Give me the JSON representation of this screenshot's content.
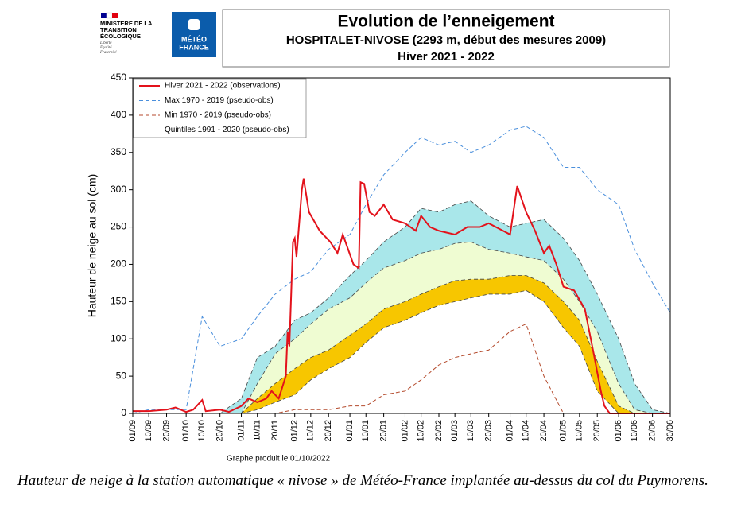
{
  "logos": {
    "ministry": "MINISTÈRE DE LA TRANSITION ÉCOLOGIQUE",
    "motto": "Liberté Égalité Fraternité",
    "meteo": [
      "MÉTÉO",
      "FRANCE"
    ]
  },
  "chart_data": {
    "type": "line",
    "title": "Evolution de l’enneigement",
    "subtitle": "HOSPITALET-NIVOSE (2293 m, début des mesures 2009)",
    "period": "Hiver 2021 - 2022",
    "y_label": "Hauteur de neige au sol (cm)",
    "note": "Graphe produit le 01/10/2022",
    "ylim": [
      0,
      450
    ],
    "yticks": [
      0,
      50,
      100,
      150,
      200,
      250,
      300,
      350,
      400,
      450
    ],
    "xlim": [
      "01/09",
      "30/06"
    ],
    "xticks": [
      "01/09",
      "10/09",
      "20/09",
      "01/10",
      "10/10",
      "20/10",
      "01/11",
      "10/11",
      "20/11",
      "01/12",
      "10/12",
      "20/12",
      "01/01",
      "10/01",
      "20/01",
      "01/02",
      "10/02",
      "20/02",
      "01/03",
      "10/03",
      "20/03",
      "01/04",
      "10/04",
      "20/04",
      "01/05",
      "10/05",
      "20/05",
      "01/06",
      "10/06",
      "20/06",
      "30/06"
    ],
    "x": [
      "01/09",
      "10/09",
      "20/09",
      "01/10",
      "10/10",
      "20/10",
      "01/11",
      "10/11",
      "20/11",
      "01/12",
      "10/12",
      "20/12",
      "01/01",
      "10/01",
      "20/01",
      "01/02",
      "10/02",
      "20/02",
      "01/03",
      "10/03",
      "20/03",
      "01/04",
      "10/04",
      "20/04",
      "01/05",
      "10/05",
      "20/05",
      "01/06",
      "10/06",
      "20/06",
      "30/06"
    ],
    "legend": "top-left",
    "series": [
      {
        "name": "Hiver 2021 - 2022 (observations)",
        "color": "#e3121b",
        "style": "solid",
        "x": [
          "01/09",
          "10/09",
          "20/09",
          "25/09",
          "01/10",
          "05/10",
          "10/10",
          "12/10",
          "20/10",
          "25/10",
          "01/11",
          "05/11",
          "10/11",
          "15/11",
          "18/11",
          "22/11",
          "26/11",
          "27/11",
          "28/11",
          "30/11",
          "01/12",
          "02/12",
          "05/12",
          "06/12",
          "09/12",
          "15/12",
          "21/12",
          "25/12",
          "28/12",
          "03/01",
          "06/01",
          "07/01",
          "09/01",
          "12/01",
          "15/01",
          "20/01",
          "25/01",
          "01/02",
          "07/02",
          "10/02",
          "15/02",
          "20/02",
          "01/03",
          "08/03",
          "15/03",
          "20/03",
          "01/04",
          "05/04",
          "10/04",
          "15/04",
          "20/04",
          "23/04",
          "27/04",
          "01/05",
          "07/05",
          "13/05",
          "18/05",
          "22/05",
          "24/05",
          "27/05",
          "30/06"
        ],
        "values": [
          3,
          3,
          5,
          8,
          2,
          5,
          18,
          3,
          5,
          2,
          10,
          20,
          15,
          20,
          30,
          20,
          50,
          110,
          90,
          230,
          235,
          210,
          300,
          315,
          270,
          245,
          230,
          215,
          240,
          200,
          195,
          310,
          308,
          270,
          265,
          280,
          260,
          255,
          245,
          265,
          250,
          245,
          240,
          250,
          250,
          255,
          240,
          305,
          270,
          245,
          215,
          225,
          200,
          170,
          165,
          140,
          80,
          30,
          10,
          0,
          0
        ]
      },
      {
        "name": "Max 1970 - 2019 (pseudo-obs)",
        "color": "#4a8fdc",
        "style": "dashed",
        "values": [
          0,
          5,
          5,
          5,
          130,
          90,
          100,
          130,
          160,
          180,
          190,
          220,
          240,
          280,
          320,
          350,
          370,
          360,
          365,
          350,
          360,
          380,
          385,
          370,
          330,
          330,
          300,
          280,
          220,
          175,
          135
        ]
      },
      {
        "name": "Min 1970 - 2019 (pseudo-obs)",
        "color": "#b44a2c",
        "style": "dashed",
        "values": [
          0,
          0,
          0,
          0,
          0,
          0,
          0,
          0,
          0,
          5,
          5,
          5,
          10,
          10,
          25,
          30,
          45,
          65,
          75,
          80,
          85,
          110,
          120,
          50,
          0,
          0,
          0,
          0,
          0,
          0,
          0
        ]
      },
      {
        "name": "Quintiles 1991 - 2020 (pseudo-obs)",
        "color": "#444444",
        "style": "dashed",
        "band_colors": [
          "#f7c600",
          "#effcd2",
          "#a9e7ea"
        ],
        "values": [
          [
            0,
            0,
            0,
            0,
            0,
            0,
            0,
            5,
            15,
            25,
            45,
            60,
            75,
            95,
            115,
            125,
            135,
            145,
            150,
            155,
            160,
            160,
            165,
            150,
            115,
            90,
            30,
            0,
            0,
            0,
            0
          ],
          [
            0,
            0,
            0,
            0,
            0,
            0,
            0,
            20,
            40,
            60,
            75,
            85,
            105,
            120,
            140,
            150,
            160,
            170,
            178,
            180,
            180,
            185,
            185,
            175,
            150,
            125,
            70,
            10,
            0,
            0,
            0
          ],
          [
            0,
            0,
            0,
            0,
            0,
            0,
            0,
            40,
            80,
            100,
            120,
            140,
            155,
            175,
            195,
            205,
            215,
            220,
            228,
            230,
            220,
            215,
            210,
            205,
            180,
            150,
            110,
            40,
            5,
            0,
            0
          ],
          [
            0,
            0,
            0,
            0,
            0,
            0,
            20,
            75,
            90,
            125,
            135,
            155,
            185,
            205,
            230,
            250,
            275,
            270,
            280,
            285,
            265,
            250,
            255,
            260,
            235,
            205,
            160,
            100,
            40,
            5,
            0
          ]
        ]
      }
    ]
  },
  "caption": "Hauteur de neige à la station automatique « nivose » de Météo-France implantée au-dessus du col du Puymorens."
}
